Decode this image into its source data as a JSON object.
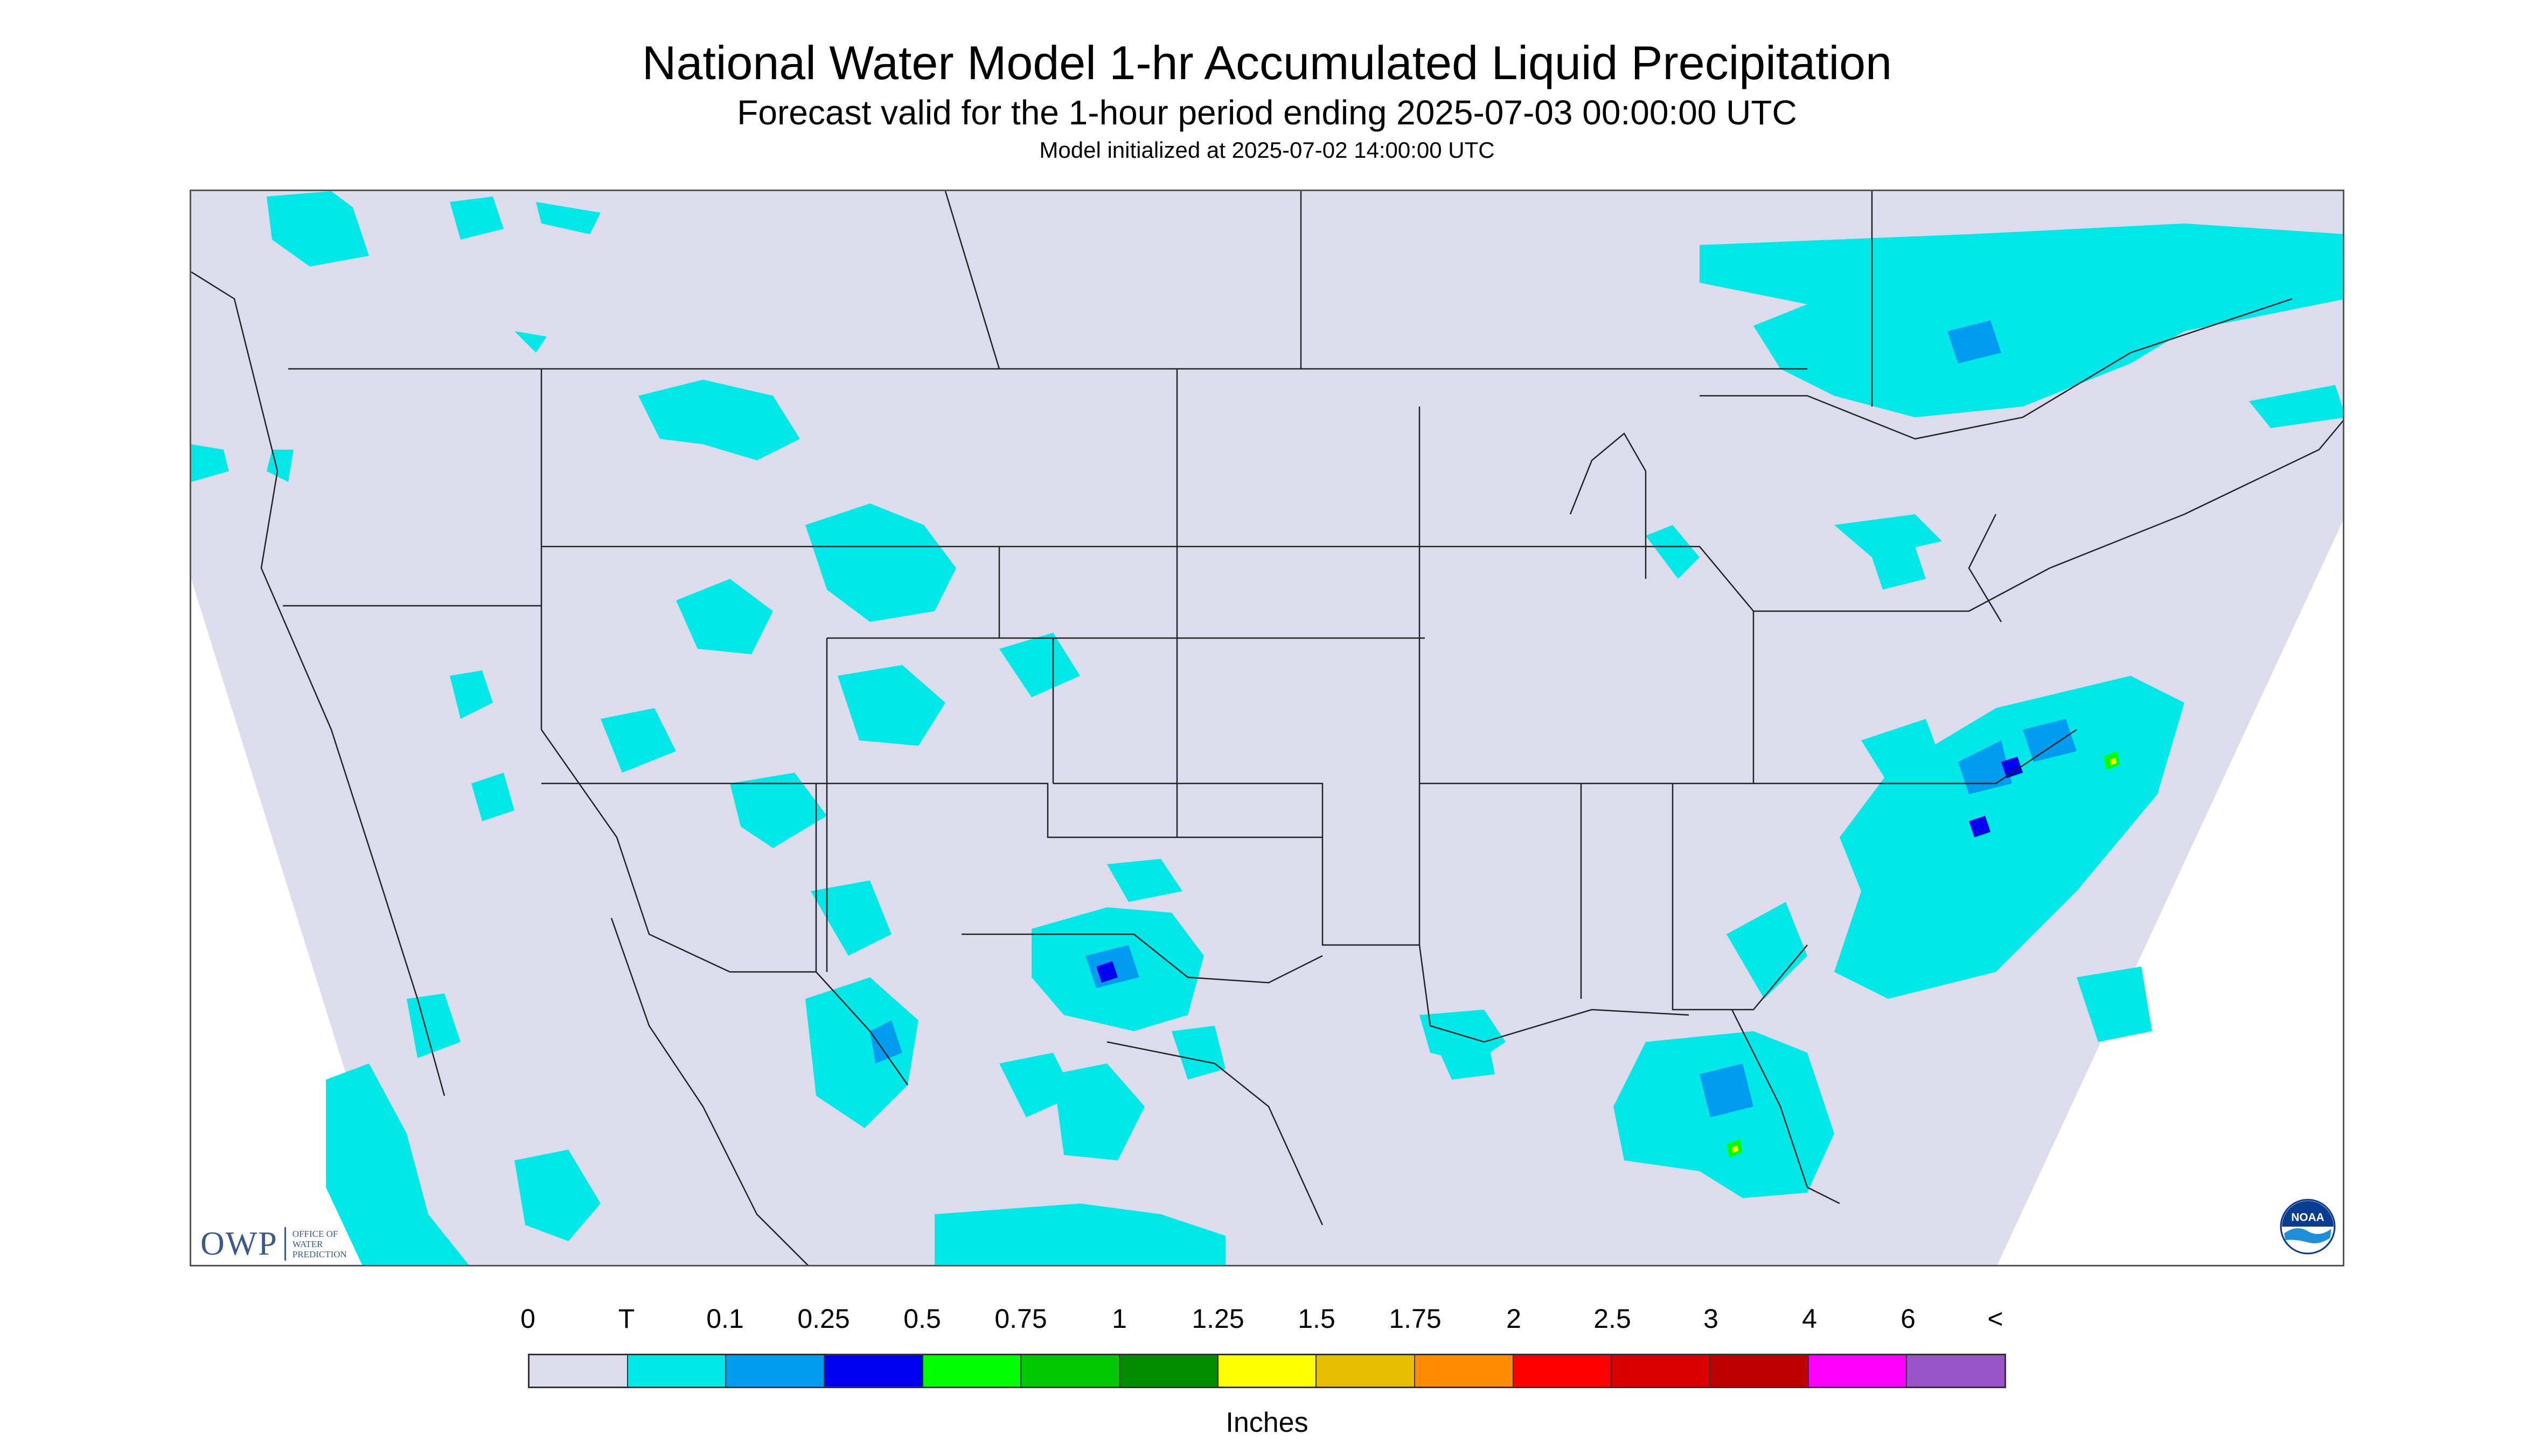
{
  "header": {
    "title": "National Water Model 1-hr Accumulated Liquid Precipitation",
    "subtitle": "Forecast valid for the 1-hour period ending 2025-07-03 00:00:00 UTC",
    "init": "Model initialized at 2025-07-02 14:00:00 UTC"
  },
  "map": {
    "background_color": "#dcdcec",
    "outside_color": "#ffffff",
    "boundary_color": "#222222",
    "regions": [
      "trace-precip-western-canada",
      "trace-precip-eastern-canada",
      "trace-precip-rockies",
      "trace-precip-southwest-mexico",
      "trace-precip-texas",
      "precip-atlantic-southeast",
      "precip-florida",
      "precip-mid-atlantic"
    ]
  },
  "logos": {
    "owp_mark": "OWP",
    "owp_sub": [
      "OFFICE OF",
      "WATER",
      "PREDICTION"
    ],
    "noaa_text": "NOAA",
    "noaa_icon": "noaa-logo-icon"
  },
  "legend": {
    "labels": [
      "0",
      "T",
      "0.1",
      "0.25",
      "0.5",
      "0.75",
      "1",
      "1.25",
      "1.5",
      "1.75",
      "2",
      "2.5",
      "3",
      "4",
      "6",
      "<"
    ],
    "colors": [
      "#dcdcec",
      "#00e8e8",
      "#009cf0",
      "#0000f0",
      "#00ff00",
      "#00c800",
      "#008c00",
      "#ffff00",
      "#e6be00",
      "#ff8c00",
      "#ff0000",
      "#d80000",
      "#c00000",
      "#ff00ff",
      "#9955c8"
    ],
    "units": "Inches"
  }
}
